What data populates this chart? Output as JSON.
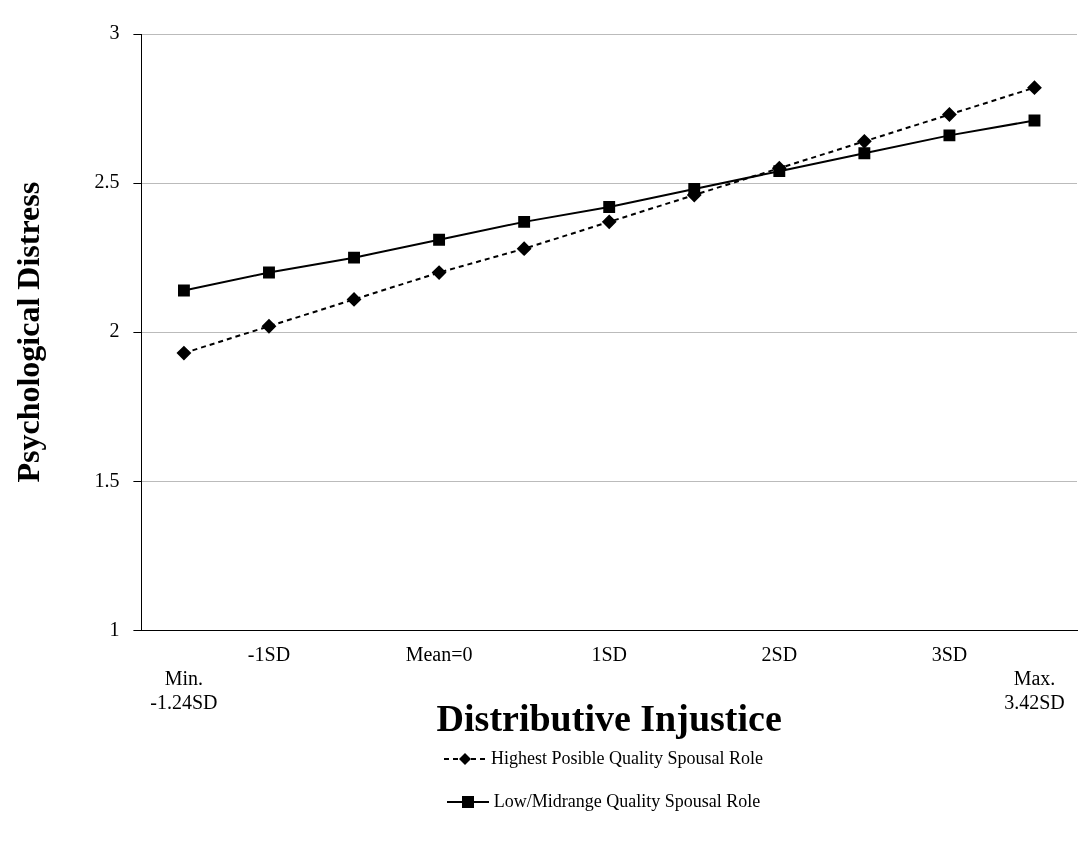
{
  "chart_data": {
    "type": "line",
    "xlabel": "Distributive Injustice",
    "ylabel": "Psychological Distress",
    "categories": [
      "Min.\n-1.24SD",
      "-1SD",
      null,
      "Mean=0",
      null,
      "1SD",
      null,
      "2SD",
      null,
      "3SD",
      "Max.\n3.42SD"
    ],
    "series": [
      {
        "name": "Highest Posible Quality Spousal Role",
        "color": "#000000",
        "marker": "diamond",
        "line_style": "dashed",
        "values": [
          1.93,
          2.02,
          2.11,
          2.2,
          2.28,
          2.37,
          2.46,
          2.55,
          2.64,
          2.73,
          2.82
        ]
      },
      {
        "name": "Low/Midrange Quality Spousal Role",
        "color": "#000000",
        "marker": "square",
        "line_style": "solid",
        "values": [
          2.14,
          2.2,
          2.25,
          2.31,
          2.37,
          2.42,
          2.48,
          2.54,
          2.6,
          2.66,
          2.71
        ]
      }
    ],
    "ylim": [
      1,
      3
    ],
    "yticks": [
      1,
      1.5,
      2,
      2.5,
      3
    ],
    "grid": "y",
    "legend": "bottom"
  }
}
